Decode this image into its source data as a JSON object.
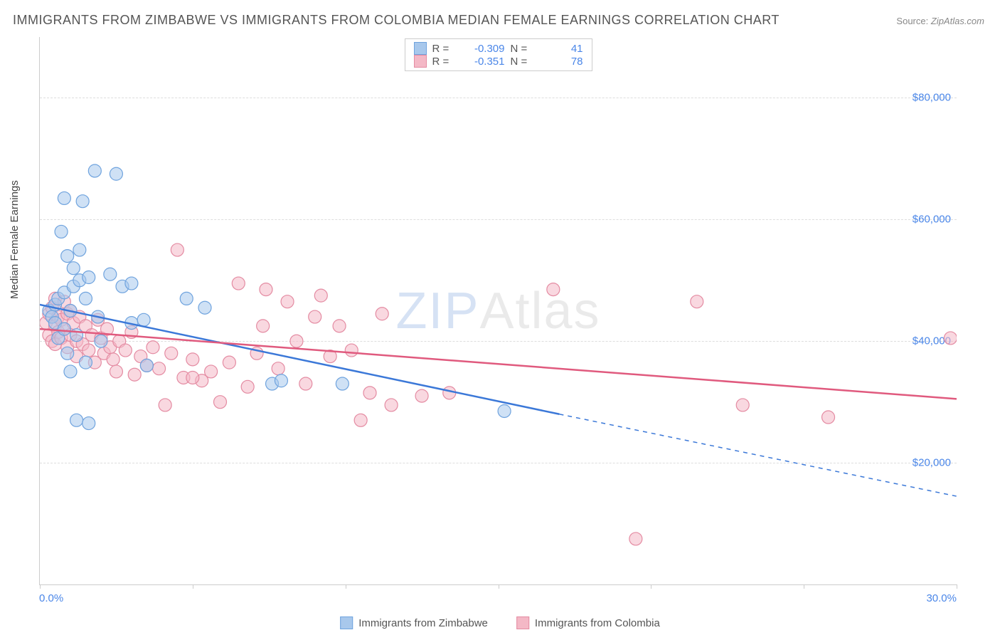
{
  "title": "IMMIGRANTS FROM ZIMBABWE VS IMMIGRANTS FROM COLOMBIA MEDIAN FEMALE EARNINGS CORRELATION CHART",
  "source_label": "Source:",
  "source_value": "ZipAtlas.com",
  "ylabel": "Median Female Earnings",
  "watermark_a": "ZIP",
  "watermark_b": "Atlas",
  "chart": {
    "type": "scatter",
    "xlim": [
      0.0,
      30.0
    ],
    "ylim": [
      0,
      90000
    ],
    "yticks": [
      20000,
      40000,
      60000,
      80000
    ],
    "ytick_labels": [
      "$20,000",
      "$40,000",
      "$60,000",
      "$80,000"
    ],
    "xtick_positions": [
      0,
      5,
      10,
      15,
      20,
      25,
      30
    ],
    "xmin_label": "0.0%",
    "xmax_label": "30.0%",
    "background_color": "#ffffff",
    "grid_color": "#dddddd",
    "axis_color": "#cccccc",
    "marker_radius": 9,
    "marker_opacity": 0.55,
    "line_width": 2.5
  },
  "series": [
    {
      "key": "zimbabwe",
      "label": "Immigrants from Zimbabwe",
      "color_fill": "#a8c8ec",
      "color_stroke": "#6fa3de",
      "line_color": "#3b78d8",
      "R": "-0.309",
      "N": "41",
      "regression": {
        "x1": 0.0,
        "y1": 46000,
        "x2": 17.0,
        "y2": 28000,
        "dash_x2": 30.0,
        "dash_y2": 14500
      },
      "points": [
        [
          0.3,
          45000
        ],
        [
          0.4,
          44000
        ],
        [
          0.5,
          43000
        ],
        [
          0.5,
          46000
        ],
        [
          0.6,
          47000
        ],
        [
          0.6,
          40500
        ],
        [
          0.7,
          58000
        ],
        [
          0.8,
          42000
        ],
        [
          0.8,
          48000
        ],
        [
          0.8,
          63500
        ],
        [
          0.9,
          54000
        ],
        [
          0.9,
          38000
        ],
        [
          1.0,
          35000
        ],
        [
          1.0,
          45000
        ],
        [
          1.1,
          49000
        ],
        [
          1.1,
          52000
        ],
        [
          1.2,
          27000
        ],
        [
          1.2,
          41000
        ],
        [
          1.3,
          55000
        ],
        [
          1.3,
          50000
        ],
        [
          1.4,
          63000
        ],
        [
          1.5,
          36500
        ],
        [
          1.5,
          47000
        ],
        [
          1.6,
          50500
        ],
        [
          1.6,
          26500
        ],
        [
          1.8,
          68000
        ],
        [
          1.9,
          44000
        ],
        [
          2.0,
          40000
        ],
        [
          2.3,
          51000
        ],
        [
          2.5,
          67500
        ],
        [
          2.7,
          49000
        ],
        [
          3.0,
          43000
        ],
        [
          3.0,
          49500
        ],
        [
          3.4,
          43500
        ],
        [
          3.5,
          36000
        ],
        [
          4.8,
          47000
        ],
        [
          5.4,
          45500
        ],
        [
          7.6,
          33000
        ],
        [
          7.9,
          33500
        ],
        [
          9.9,
          33000
        ],
        [
          15.2,
          28500
        ]
      ]
    },
    {
      "key": "colombia",
      "label": "Immigrants from Colombia",
      "color_fill": "#f4b8c6",
      "color_stroke": "#e48ba2",
      "line_color": "#e05a7e",
      "R": "-0.351",
      "N": "78",
      "regression": {
        "x1": 0.0,
        "y1": 42000,
        "x2": 30.0,
        "y2": 30500
      },
      "points": [
        [
          0.2,
          43000
        ],
        [
          0.3,
          44500
        ],
        [
          0.3,
          41000
        ],
        [
          0.4,
          45500
        ],
        [
          0.4,
          40000
        ],
        [
          0.5,
          47000
        ],
        [
          0.5,
          42500
        ],
        [
          0.5,
          39500
        ],
        [
          0.6,
          44000
        ],
        [
          0.6,
          41500
        ],
        [
          0.7,
          43500
        ],
        [
          0.7,
          40500
        ],
        [
          0.8,
          46500
        ],
        [
          0.8,
          42000
        ],
        [
          0.9,
          44500
        ],
        [
          0.9,
          39000
        ],
        [
          1.0,
          45000
        ],
        [
          1.0,
          41000
        ],
        [
          1.1,
          43000
        ],
        [
          1.2,
          40000
        ],
        [
          1.2,
          37500
        ],
        [
          1.3,
          44000
        ],
        [
          1.4,
          39500
        ],
        [
          1.5,
          42500
        ],
        [
          1.6,
          38500
        ],
        [
          1.7,
          41000
        ],
        [
          1.8,
          36500
        ],
        [
          1.9,
          43500
        ],
        [
          2.0,
          40500
        ],
        [
          2.1,
          38000
        ],
        [
          2.2,
          42000
        ],
        [
          2.3,
          39000
        ],
        [
          2.4,
          37000
        ],
        [
          2.5,
          35000
        ],
        [
          2.6,
          40000
        ],
        [
          2.8,
          38500
        ],
        [
          3.0,
          41500
        ],
        [
          3.1,
          34500
        ],
        [
          3.3,
          37500
        ],
        [
          3.5,
          36000
        ],
        [
          3.7,
          39000
        ],
        [
          3.9,
          35500
        ],
        [
          4.1,
          29500
        ],
        [
          4.3,
          38000
        ],
        [
          4.5,
          55000
        ],
        [
          4.7,
          34000
        ],
        [
          5.0,
          37000
        ],
        [
          5.3,
          33500
        ],
        [
          5.6,
          35000
        ],
        [
          5.9,
          30000
        ],
        [
          6.2,
          36500
        ],
        [
          6.5,
          49500
        ],
        [
          6.8,
          32500
        ],
        [
          7.1,
          38000
        ],
        [
          7.3,
          42500
        ],
        [
          7.4,
          48500
        ],
        [
          7.8,
          35500
        ],
        [
          8.1,
          46500
        ],
        [
          8.4,
          40000
        ],
        [
          8.7,
          33000
        ],
        [
          9.0,
          44000
        ],
        [
          9.2,
          47500
        ],
        [
          9.5,
          37500
        ],
        [
          9.8,
          42500
        ],
        [
          10.2,
          38500
        ],
        [
          10.5,
          27000
        ],
        [
          10.8,
          31500
        ],
        [
          11.2,
          44500
        ],
        [
          11.5,
          29500
        ],
        [
          12.5,
          31000
        ],
        [
          13.4,
          31500
        ],
        [
          16.8,
          48500
        ],
        [
          19.5,
          7500
        ],
        [
          21.5,
          46500
        ],
        [
          23.0,
          29500
        ],
        [
          25.8,
          27500
        ],
        [
          29.8,
          40500
        ],
        [
          5.0,
          34000
        ]
      ]
    }
  ],
  "legend_top": {
    "R_label": "R =",
    "N_label": "N ="
  }
}
